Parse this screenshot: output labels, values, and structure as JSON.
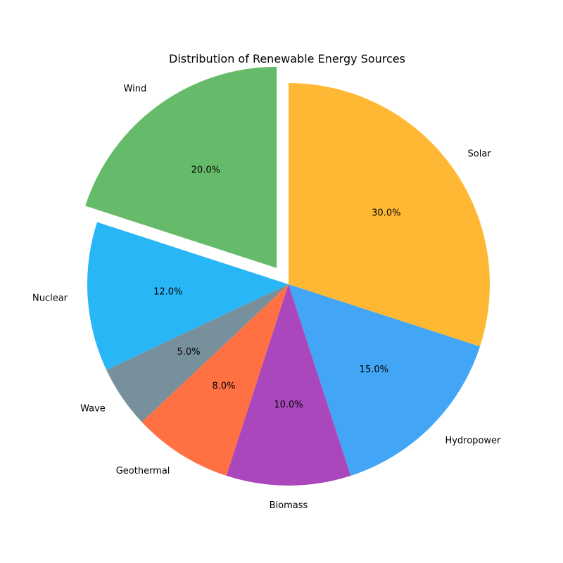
{
  "chart_data": {
    "type": "pie",
    "title": "Distribution of Renewable Energy Sources",
    "slices": [
      {
        "label": "Solar",
        "value": 30.0,
        "percent_label": "30.0%",
        "color": "#FFB833",
        "explode": 0.0
      },
      {
        "label": "Wind",
        "value": 20.0,
        "percent_label": "20.0%",
        "color": "#66BB6A",
        "explode": 0.1
      },
      {
        "label": "Nuclear",
        "value": 12.0,
        "percent_label": "12.0%",
        "color": "#29B6F6",
        "explode": 0.0
      },
      {
        "label": "Wave",
        "value": 5.0,
        "percent_label": "5.0%",
        "color": "#78909C",
        "explode": 0.0
      },
      {
        "label": "Geothermal",
        "value": 8.0,
        "percent_label": "8.0%",
        "color": "#FF7043",
        "explode": 0.0
      },
      {
        "label": "Biomass",
        "value": 10.0,
        "percent_label": "10.0%",
        "color": "#AB47BC",
        "explode": 0.0
      },
      {
        "label": "Hydropower",
        "value": 15.0,
        "percent_label": "15.0%",
        "color": "#42A5F5",
        "explode": 0.0
      }
    ],
    "start_angle_deg": -18,
    "direction": "counterclockwise",
    "legend": "none"
  }
}
